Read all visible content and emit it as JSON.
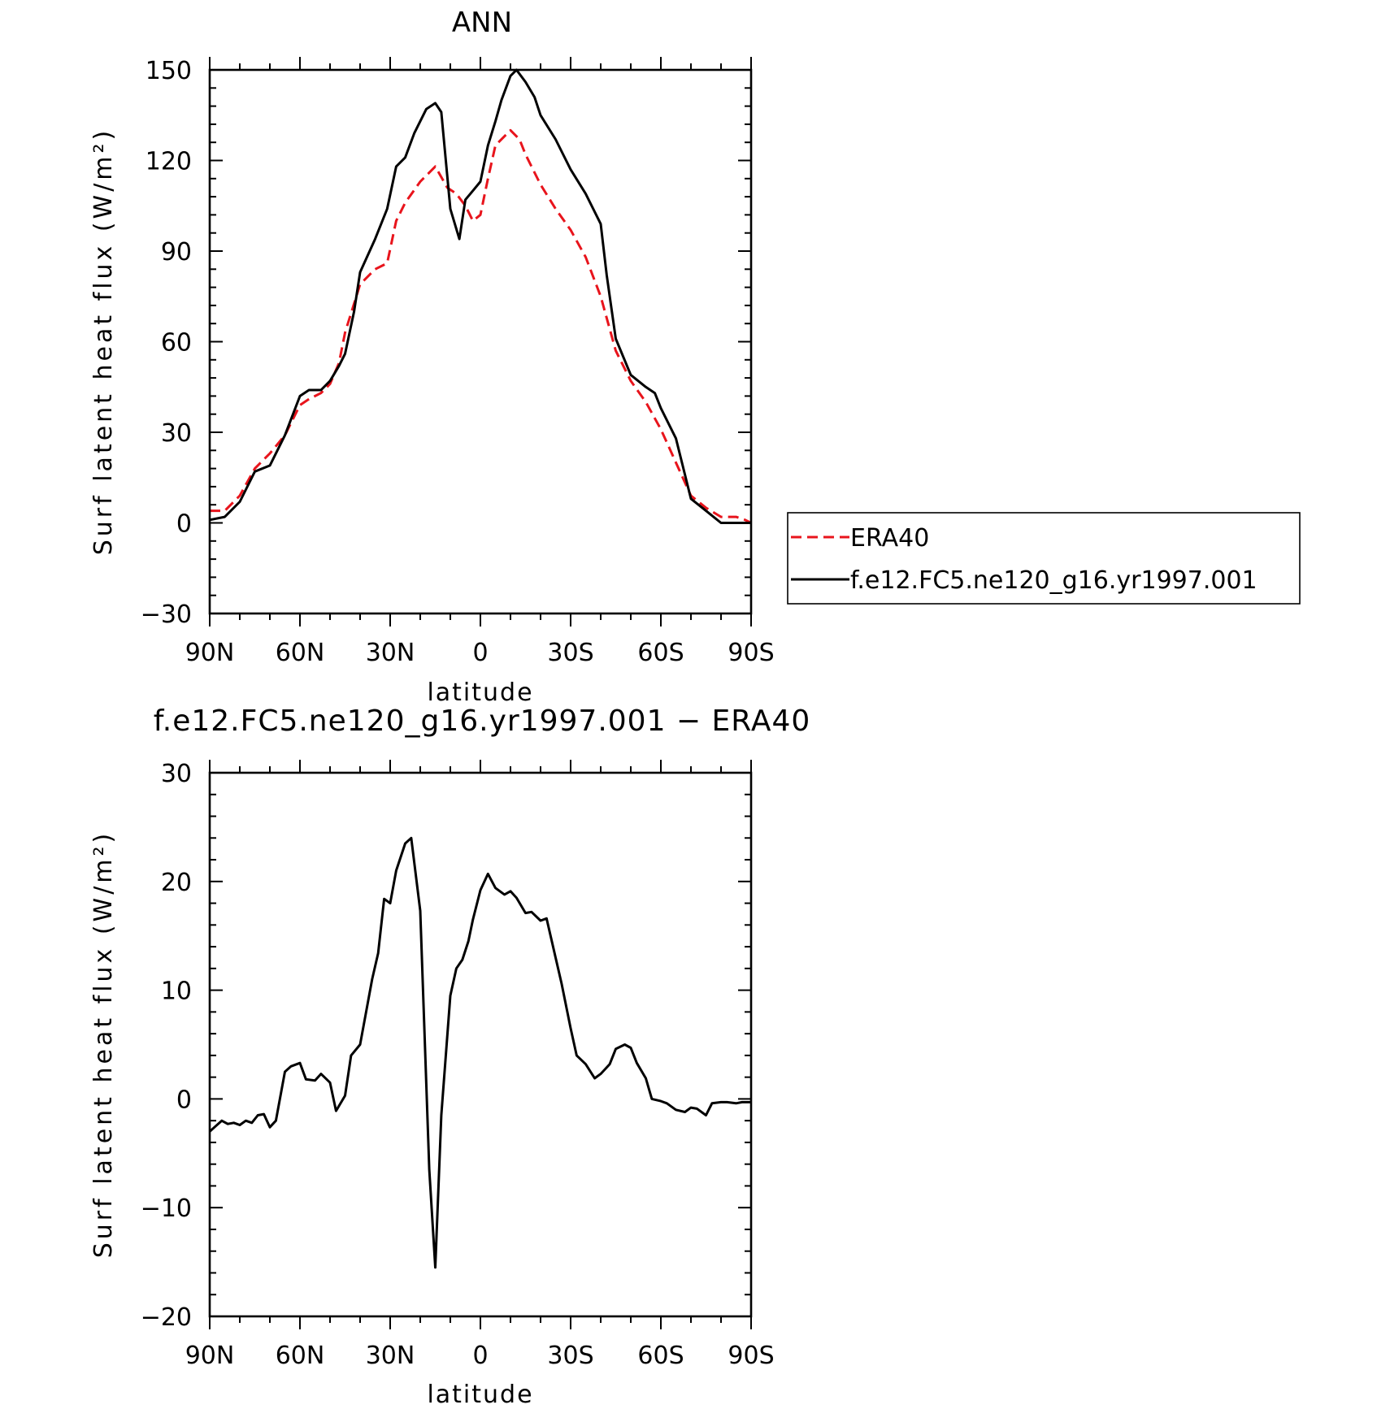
{
  "chart_data": [
    {
      "type": "line",
      "title": "ANN",
      "xlabel": "latitude",
      "ylabel": "Surf latent heat flux (W/m²)",
      "x_domain": [
        90,
        -90
      ],
      "xticks": [
        90,
        60,
        30,
        0,
        -30,
        -60,
        -90
      ],
      "xtick_labels": [
        "90N",
        "60N",
        "30N",
        "0",
        "30S",
        "60S",
        "90S"
      ],
      "ylim": [
        -30,
        150
      ],
      "yticks": [
        -30,
        0,
        30,
        60,
        90,
        120,
        150
      ],
      "ytick_labels": [
        "−30",
        "0",
        "30",
        "60",
        "90",
        "120",
        "150"
      ],
      "legend_position": "right",
      "series": [
        {
          "name": "ERA40",
          "color": "#e8141c",
          "dash": "dashed",
          "x": [
            90,
            85,
            80,
            75,
            70,
            65,
            60,
            57,
            53,
            50,
            47,
            45,
            40,
            35,
            31,
            28,
            25,
            20,
            15,
            11,
            8,
            5,
            2.5,
            0,
            -2.5,
            -5,
            -10,
            -13,
            -15,
            -20,
            -25,
            -30,
            -35,
            -40,
            -45,
            -50,
            -55,
            -60,
            -65,
            -70,
            -75,
            -80,
            -85,
            -88,
            -90
          ],
          "y": [
            4,
            4,
            9,
            18,
            23,
            29,
            39,
            41,
            43,
            46,
            53,
            63,
            79,
            84,
            86,
            100,
            106,
            113,
            118,
            111,
            109,
            105,
            100,
            102,
            114,
            125,
            130,
            127,
            122,
            112,
            104,
            97,
            88,
            75,
            57,
            47,
            40,
            31,
            20,
            9,
            5,
            2,
            2,
            1,
            0
          ]
        },
        {
          "name": "f.e12.FC5.ne120_g16.yr1997.001",
          "color": "#000000",
          "dash": "solid",
          "x": [
            90,
            85,
            80,
            75,
            70,
            65,
            60,
            57,
            53,
            50,
            47,
            45,
            42,
            40,
            35,
            31,
            28,
            25,
            22,
            18,
            15,
            13,
            10,
            7,
            5,
            2.5,
            0,
            -2.5,
            -5,
            -7,
            -10,
            -12,
            -15,
            -18,
            -20,
            -25,
            -30,
            -35,
            -40,
            -42,
            -45,
            -50,
            -55,
            -58,
            -60,
            -65,
            -70,
            -75,
            -80,
            -85,
            -90
          ],
          "y": [
            1,
            2,
            7,
            17,
            19,
            29,
            42,
            44,
            44,
            47,
            52,
            56,
            70,
            83,
            94,
            104,
            118,
            121,
            129,
            137,
            139,
            136,
            104,
            94,
            107,
            110,
            113,
            125,
            133,
            140,
            148,
            150,
            146,
            141,
            135,
            127,
            117,
            109,
            99,
            82,
            61,
            49,
            45,
            43,
            38,
            28,
            8,
            4,
            0,
            0,
            0
          ]
        }
      ]
    },
    {
      "type": "line",
      "title": "f.e12.FC5.ne120_g16.yr1997.001 − ERA40",
      "xlabel": "latitude",
      "ylabel": "Surf latent heat flux (W/m²)",
      "x_domain": [
        90,
        -90
      ],
      "xticks": [
        90,
        60,
        30,
        0,
        -30,
        -60,
        -90
      ],
      "xtick_labels": [
        "90N",
        "60N",
        "30N",
        "0",
        "30S",
        "60S",
        "90S"
      ],
      "ylim": [
        -20,
        30
      ],
      "yticks": [
        -20,
        -10,
        0,
        10,
        20,
        30
      ],
      "ytick_labels": [
        "−20",
        "−10",
        "0",
        "10",
        "20",
        "30"
      ],
      "series": [
        {
          "color": "#000000",
          "dash": "solid",
          "x": [
            90,
            88,
            86,
            84,
            82,
            80,
            78,
            76,
            74,
            72,
            70,
            68,
            65,
            63,
            60,
            58,
            55,
            53,
            50,
            48,
            45,
            43,
            40,
            38,
            36,
            34,
            32,
            30,
            28,
            25,
            23,
            20,
            17,
            15,
            13,
            10,
            8,
            6,
            4,
            2.5,
            0,
            -2.5,
            -5,
            -8,
            -10,
            -12,
            -15,
            -17,
            -20,
            -22,
            -25,
            -27,
            -30,
            -32,
            -35,
            -38,
            -40,
            -43,
            -45,
            -48,
            -50,
            -52,
            -55,
            -57,
            -60,
            -62,
            -65,
            -68,
            -70,
            -72,
            -75,
            -77,
            -80,
            -82,
            -85,
            -87,
            -90
          ],
          "y": [
            -3,
            -2.5,
            -2,
            -2.3,
            -2.2,
            -2.4,
            -2,
            -2.2,
            -1.5,
            -1.4,
            -2.6,
            -2,
            2.5,
            3,
            3.3,
            1.8,
            1.7,
            2.3,
            1.5,
            -1.1,
            0.3,
            4,
            5,
            8,
            11,
            13.4,
            18.4,
            18,
            21,
            23.5,
            24,
            17.3,
            -6.5,
            -15.5,
            -1.5,
            9.5,
            12,
            12.8,
            14.5,
            16.5,
            19.2,
            20.7,
            19.4,
            18.8,
            19.1,
            18.5,
            17.1,
            17.2,
            16.4,
            16.6,
            13,
            10.6,
            6.5,
            4,
            3.2,
            1.9,
            2.3,
            3.2,
            4.6,
            5,
            4.7,
            3.3,
            1.9,
            0,
            -0.2,
            -0.4,
            -1,
            -1.2,
            -0.8,
            -0.9,
            -1.5,
            -0.4,
            -0.3,
            -0.3,
            -0.4,
            -0.3,
            -0.3
          ]
        }
      ]
    }
  ]
}
